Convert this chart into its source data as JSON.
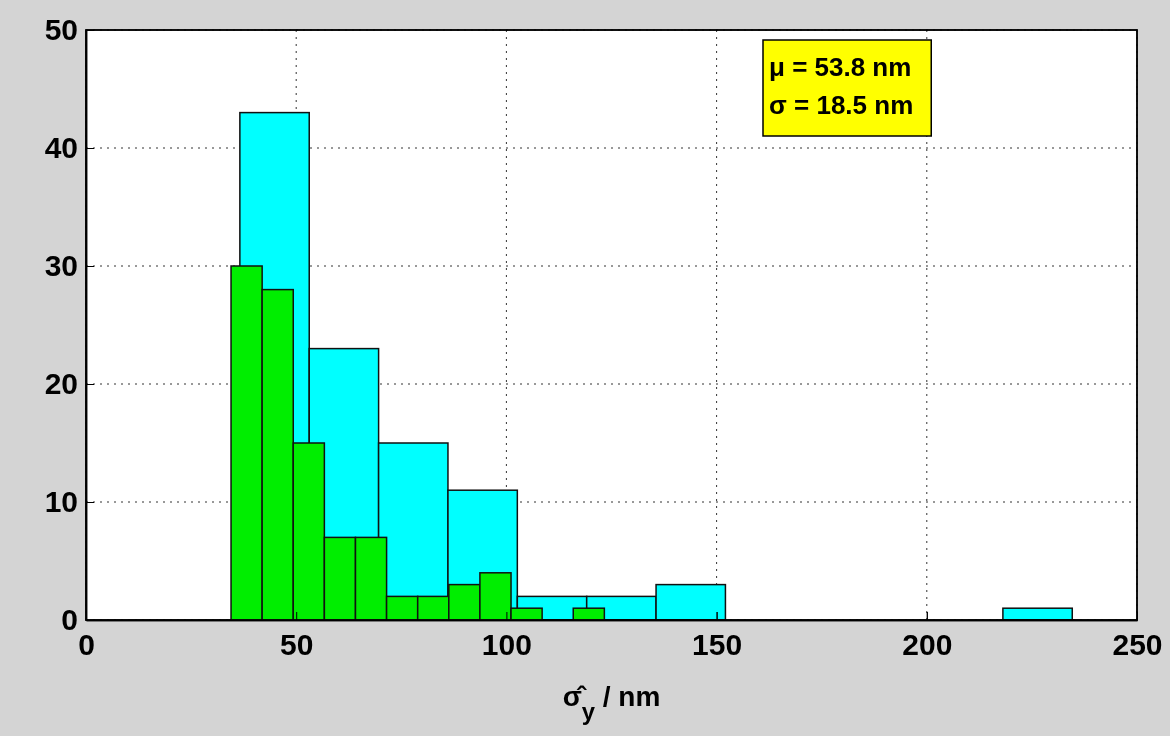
{
  "chart_data": [
    {
      "type": "histogram",
      "xlabel": "σ̂$_{y}$ / nm",
      "color": "#00ffff",
      "bins": [
        36.6,
        53.1,
        69.6,
        86.1,
        102.6,
        119.1,
        135.6,
        152.1,
        168.6,
        185.1,
        201.6,
        218.1,
        234.6
      ],
      "values": [
        43,
        23,
        15,
        11,
        2,
        2,
        3,
        0,
        0,
        0,
        0,
        1
      ],
      "xlim": [
        0,
        250
      ],
      "xticks": [
        0,
        50,
        100,
        150,
        200,
        250
      ],
      "ylim": [
        0,
        50
      ],
      "yticks": [
        0,
        10,
        20,
        30,
        40,
        50
      ],
      "grid": true,
      "annotations": [
        "μ  = 53.8 nm",
        "σ = 18.5 nm"
      ]
    },
    {
      "type": "histogram",
      "color": "#00ee00",
      "bins": [
        34.5,
        41.9,
        49.3,
        56.7,
        64.1,
        71.5,
        78.9,
        86.3,
        93.7,
        101.1,
        108.5,
        115.9,
        123.3
      ],
      "values": [
        30,
        28,
        15,
        7,
        7,
        2,
        2,
        3,
        4,
        1,
        0,
        1
      ],
      "xlim": [
        0,
        250
      ],
      "xticks": [
        0,
        50,
        100,
        150,
        200,
        250
      ],
      "ylim": [
        0,
        50
      ],
      "yticks": [
        0,
        10,
        20,
        30,
        40,
        50
      ],
      "tick_labels": false
    }
  ]
}
